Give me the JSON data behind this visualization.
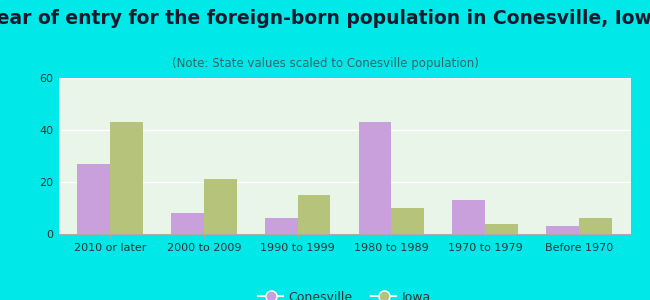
{
  "title": "Year of entry for the foreign-born population in Conesville, Iowa",
  "subtitle": "(Note: State values scaled to Conesville population)",
  "categories": [
    "2010 or later",
    "2000 to 2009",
    "1990 to 1999",
    "1980 to 1989",
    "1970 to 1979",
    "Before 1970"
  ],
  "conesville_values": [
    27,
    8,
    6,
    43,
    13,
    3
  ],
  "iowa_values": [
    43,
    21,
    15,
    10,
    4,
    6
  ],
  "conesville_color": "#c9a0dc",
  "iowa_color": "#b5c47a",
  "background_outer": "#00e8e8",
  "background_inner": "#e8f5e8",
  "ylim": [
    0,
    60
  ],
  "yticks": [
    0,
    20,
    40,
    60
  ],
  "bar_width": 0.35,
  "legend_labels": [
    "Conesville",
    "Iowa"
  ],
  "title_fontsize": 13.5,
  "subtitle_fontsize": 8.5,
  "tick_fontsize": 8.0
}
